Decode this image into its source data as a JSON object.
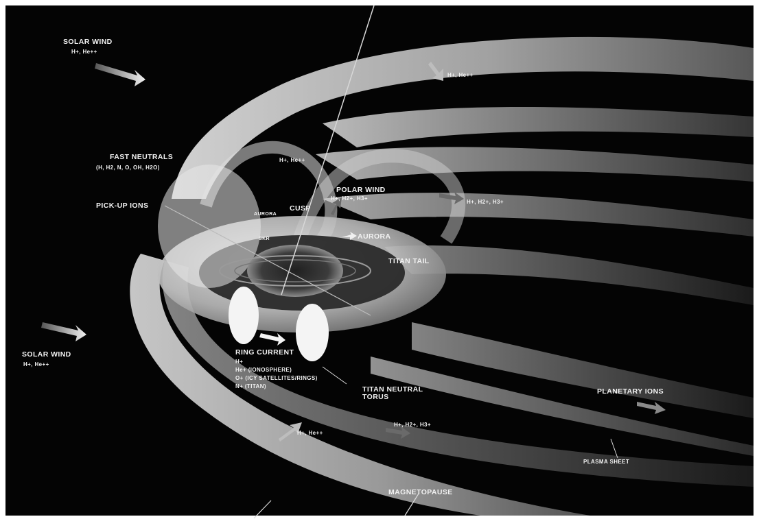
{
  "colors": {
    "background": "#040404",
    "frame": "#ffffff",
    "magnetosphere_light": "#e6e6e6",
    "magnetosphere_mid": "#8a8a8a",
    "label": "#f2f2f2"
  },
  "labels": {
    "solar_wind_top": {
      "title": "SOLAR WIND",
      "ions": "H+, He++"
    },
    "fast_neutrals": {
      "title": "FAST NEUTRALS",
      "species": "(H, H2, N, O, OH, H2O)"
    },
    "pick_up_ions": "PICK-UP IONS",
    "top_flow_ions": "H+, He++",
    "cusp_ions": "H+, He++",
    "cusp": "CUSP",
    "aurora_small": "AURORA",
    "skr": "SKR",
    "polar_wind": {
      "title": "POLAR WIND",
      "ions": "H+, H2+, H3+"
    },
    "right_flow_ions": "H+, H2+, H3+",
    "aurora": "AURORA",
    "titan_tail": "TITAN TAIL",
    "solar_wind_bottom": {
      "title": "SOLAR WIND",
      "ions": "H+, He++"
    },
    "ring_current": {
      "title": "RING CURRENT",
      "ion1": "H+",
      "ion2": "He+ (IONOSPHERE)",
      "ion3": "O+ (ICY SATELLITES/RINGS)",
      "ion4": "N+ (TITAN)"
    },
    "titan_neutral_torus": {
      "line1": "TITAN NEUTRAL",
      "line2": "TORUS"
    },
    "planetary_ions": "PLANETARY IONS",
    "bottom_flow_ions": "H+, He++",
    "bottom_planetary_ions": "H+, H2+, H3+",
    "plasma_sheet": "PLASMA SHEET",
    "magnetopause": "MAGNETOPAUSE"
  }
}
